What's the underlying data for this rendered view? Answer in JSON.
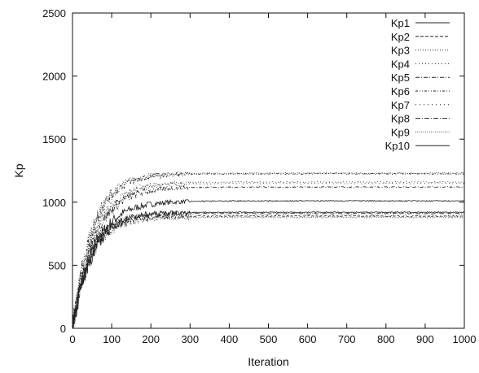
{
  "chart_data": {
    "type": "line",
    "title": "",
    "xlabel": "Iteration",
    "ylabel": "Kp",
    "xlim": [
      0,
      1000
    ],
    "ylim": [
      0,
      2500
    ],
    "xticks": [
      0,
      100,
      200,
      300,
      400,
      500,
      600,
      700,
      800,
      900,
      1000
    ],
    "yticks": [
      0,
      500,
      1000,
      1500,
      2000,
      2500
    ],
    "grid": false,
    "legend": "top-right",
    "series": [
      {
        "name": "Kp1",
        "final": 1010,
        "rise": 55,
        "style": "solid",
        "x": [
          0,
          20,
          50,
          100,
          150,
          200,
          250,
          300,
          1000
        ],
        "values": [
          0,
          540,
          840,
          960,
          995,
          1008,
          1010,
          1010,
          1010
        ]
      },
      {
        "name": "Kp2",
        "final": 890,
        "rise": 45,
        "style": "dash",
        "x": [
          0,
          20,
          50,
          100,
          150,
          200,
          250,
          300,
          1000
        ],
        "values": [
          0,
          500,
          760,
          860,
          884,
          890,
          890,
          890,
          890
        ]
      },
      {
        "name": "Kp3",
        "final": 1230,
        "rise": 50,
        "style": "dot",
        "x": [
          0,
          20,
          50,
          100,
          150,
          200,
          250,
          300,
          1000
        ],
        "values": [
          0,
          590,
          940,
          1150,
          1210,
          1226,
          1230,
          1230,
          1230
        ]
      },
      {
        "name": "Kp4",
        "final": 1160,
        "rise": 55,
        "style": "longdot",
        "x": [
          0,
          20,
          50,
          100,
          150,
          200,
          250,
          300,
          1000
        ],
        "values": [
          0,
          530,
          870,
          1070,
          1135,
          1155,
          1160,
          1160,
          1160
        ]
      },
      {
        "name": "Kp5",
        "final": 1120,
        "rise": 55,
        "style": "dashdot",
        "x": [
          0,
          20,
          50,
          100,
          150,
          200,
          250,
          300,
          1000
        ],
        "values": [
          0,
          510,
          840,
          1030,
          1095,
          1115,
          1120,
          1120,
          1120
        ]
      },
      {
        "name": "Kp6",
        "final": 1225,
        "rise": 50,
        "style": "dashdot2",
        "x": [
          0,
          20,
          50,
          100,
          150,
          200,
          250,
          300,
          1000
        ],
        "values": [
          0,
          600,
          950,
          1150,
          1205,
          1220,
          1225,
          1225,
          1225
        ]
      },
      {
        "name": "Kp7",
        "final": 1150,
        "rise": 55,
        "style": "sparse",
        "x": [
          0,
          20,
          50,
          100,
          150,
          200,
          250,
          300,
          1000
        ],
        "values": [
          0,
          520,
          860,
          1060,
          1125,
          1145,
          1150,
          1150,
          1150
        ]
      },
      {
        "name": "Kp8",
        "final": 910,
        "rise": 45,
        "style": "dashdot3",
        "x": [
          0,
          20,
          50,
          100,
          150,
          200,
          250,
          300,
          1000
        ],
        "values": [
          0,
          520,
          780,
          880,
          904,
          910,
          910,
          910,
          910
        ]
      },
      {
        "name": "Kp9",
        "final": 880,
        "rise": 45,
        "style": "finedot",
        "x": [
          0,
          20,
          50,
          100,
          150,
          200,
          250,
          300,
          1000
        ],
        "values": [
          0,
          490,
          750,
          850,
          874,
          880,
          880,
          880,
          880
        ]
      },
      {
        "name": "Kp10",
        "final": 920,
        "rise": 50,
        "style": "solid",
        "x": [
          0,
          20,
          50,
          100,
          150,
          200,
          250,
          300,
          1000
        ],
        "values": [
          0,
          500,
          770,
          880,
          910,
          918,
          920,
          920,
          920
        ]
      }
    ]
  }
}
